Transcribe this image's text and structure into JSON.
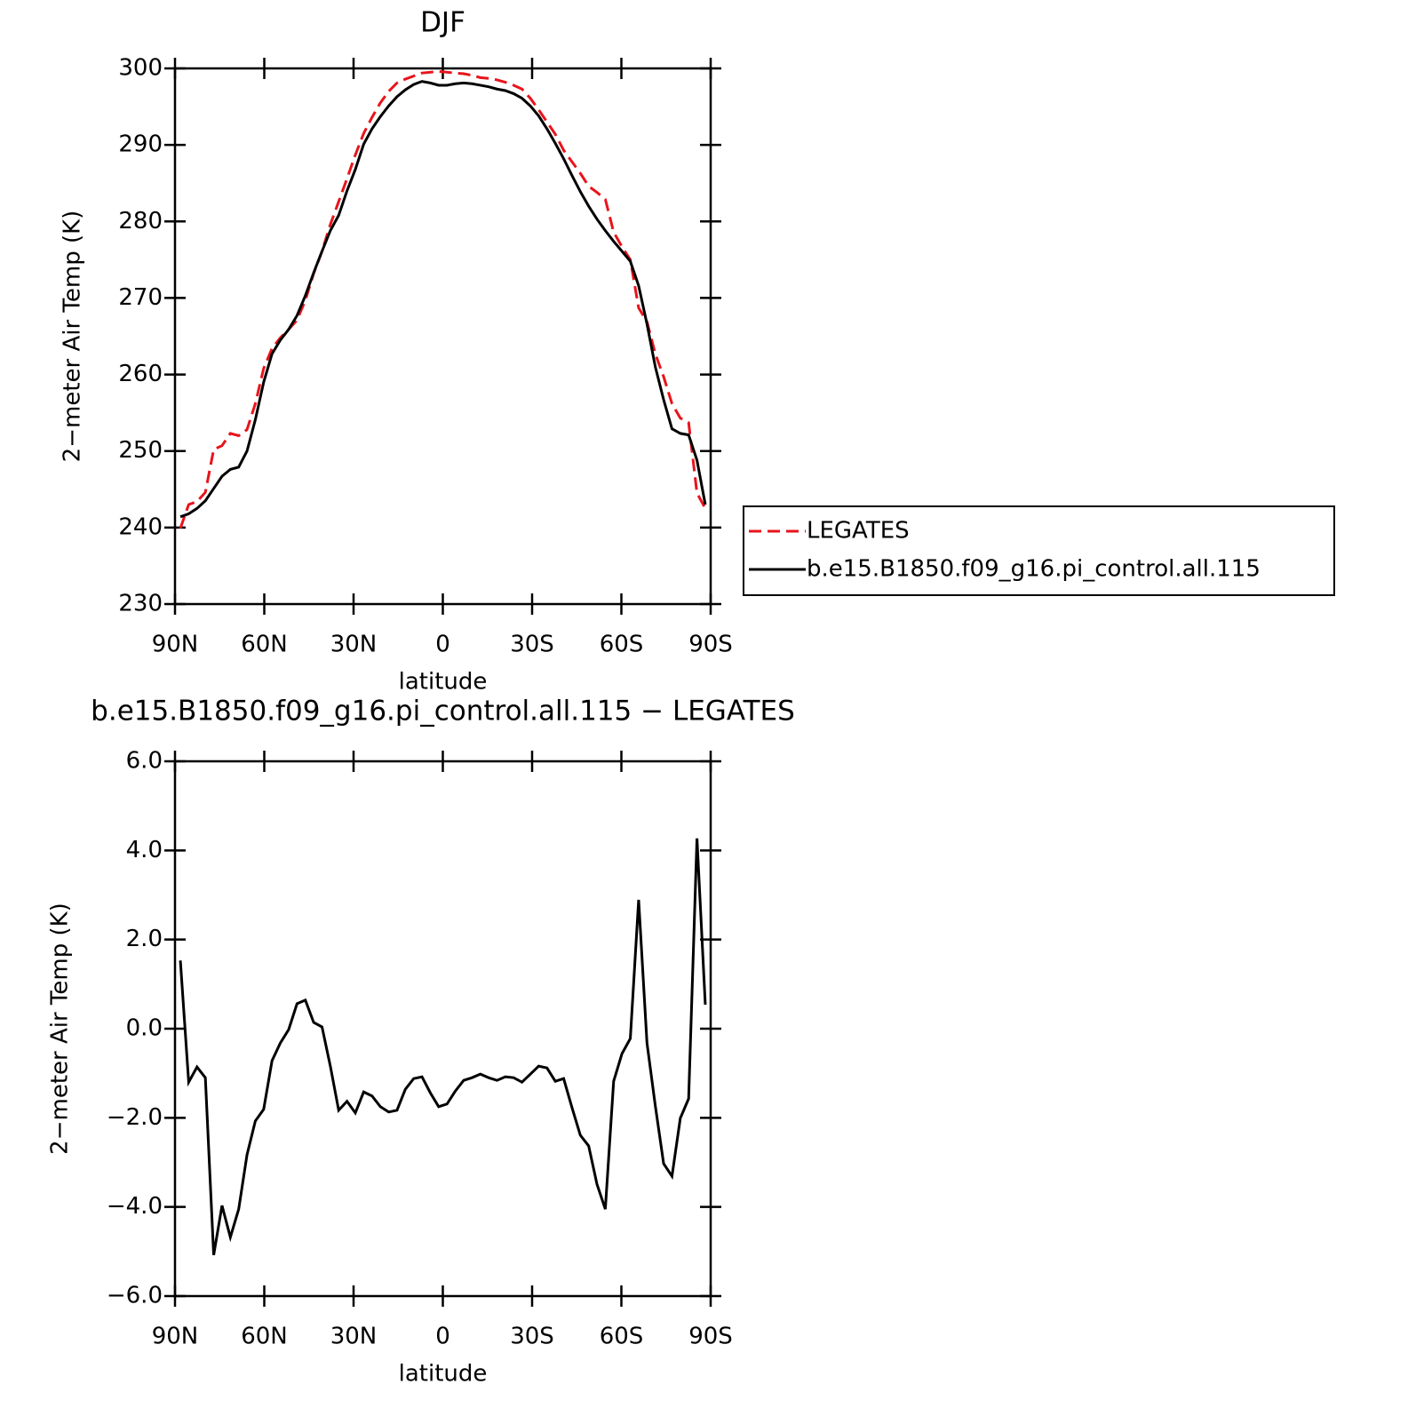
{
  "chart_data": [
    {
      "type": "line",
      "title": "DJF",
      "xlabel": "latitude",
      "ylabel": "2−meter Air Temp (K)",
      "xlim": [
        90,
        -90
      ],
      "ylim": [
        230,
        300
      ],
      "xticks": [
        {
          "value": 90,
          "label": "90N"
        },
        {
          "value": 60,
          "label": "60N"
        },
        {
          "value": 30,
          "label": "30N"
        },
        0,
        {
          "value": -30,
          "label": "30S"
        },
        {
          "value": -60,
          "label": "60S"
        },
        {
          "value": -90,
          "label": "90S"
        }
      ],
      "yticks": [
        230,
        240,
        250,
        260,
        270,
        280,
        290,
        300
      ],
      "legend": "right",
      "x": [
        88.2,
        85.4,
        82.6,
        79.8,
        77,
        74.2,
        71.4,
        68.6,
        65.8,
        63,
        60.2,
        57.4,
        54.6,
        51.8,
        49,
        46.2,
        43.4,
        40.6,
        37.8,
        35,
        32.2,
        29.4,
        26.6,
        23.8,
        21,
        18.2,
        15.4,
        12.6,
        9.8,
        7,
        4.2,
        1.4,
        -1.4,
        -4.2,
        -7,
        -9.8,
        -12.6,
        -15.4,
        -18.2,
        -21,
        -23.8,
        -26.6,
        -29.4,
        -32.2,
        -35,
        -37.8,
        -40.6,
        -43.4,
        -46.2,
        -49,
        -51.8,
        -54.6,
        -57.4,
        -60.2,
        -63,
        -65.8,
        -68.6,
        -71.4,
        -74.2,
        -77,
        -79.8,
        -82.6,
        -85.4,
        -88.2
      ],
      "series": [
        {
          "name": "LEGATES",
          "color": "#e8141b",
          "linestyle": "dashed",
          "values": [
            239.9,
            243.0,
            243.4,
            244.6,
            250.2,
            250.7,
            252.3,
            252.0,
            252.8,
            256.2,
            260.8,
            263.4,
            264.8,
            265.9,
            267.1,
            269.7,
            273.2,
            276.1,
            279.6,
            282.6,
            285.6,
            288.7,
            291.5,
            293.6,
            295.5,
            297.0,
            298.1,
            298.6,
            299.0,
            299.4,
            299.5,
            299.6,
            299.5,
            299.4,
            299.3,
            299.1,
            298.8,
            298.7,
            298.5,
            298.2,
            297.8,
            297.3,
            296.1,
            294.6,
            293.0,
            291.4,
            289.3,
            287.8,
            286.3,
            284.6,
            283.8,
            282.9,
            278.6,
            276.7,
            275.0,
            268.7,
            266.9,
            262.7,
            259.7,
            256.2,
            254.3,
            253.7,
            244.5,
            242.5
          ]
        },
        {
          "name": "b.e15.B1850.f09_g16.pi_control.all.115",
          "color": "#000000",
          "linestyle": "solid",
          "values": [
            241.4,
            241.8,
            242.5,
            243.5,
            245.1,
            246.7,
            247.6,
            247.9,
            250.0,
            254.1,
            259.0,
            262.7,
            264.5,
            265.9,
            267.7,
            270.3,
            273.3,
            276.1,
            278.8,
            280.8,
            284.0,
            286.8,
            290.1,
            292.1,
            293.7,
            295.1,
            296.3,
            297.2,
            297.9,
            298.3,
            298.1,
            297.8,
            297.8,
            298.0,
            298.1,
            298.0,
            297.8,
            297.6,
            297.3,
            297.1,
            296.7,
            296.1,
            295.1,
            293.8,
            292.1,
            290.2,
            288.2,
            286.0,
            283.9,
            282.0,
            280.3,
            278.8,
            277.4,
            276.1,
            274.8,
            271.6,
            266.6,
            261.0,
            256.7,
            252.9,
            252.3,
            252.1,
            248.8,
            243.0
          ]
        }
      ]
    },
    {
      "type": "line",
      "title": "b.e15.B1850.f09_g16.pi_control.all.115 − LEGATES",
      "xlabel": "latitude",
      "ylabel": "2−meter Air Temp (K)",
      "xlim": [
        90,
        -90
      ],
      "ylim": [
        -6,
        6
      ],
      "xticks": [
        {
          "value": 90,
          "label": "90N"
        },
        {
          "value": 60,
          "label": "60N"
        },
        {
          "value": 30,
          "label": "30N"
        },
        0,
        {
          "value": -30,
          "label": "30S"
        },
        {
          "value": -60,
          "label": "60S"
        },
        {
          "value": -90,
          "label": "90S"
        }
      ],
      "yticks": [
        {
          "value": -6,
          "label": "−6.0"
        },
        {
          "value": -4,
          "label": "−4.0"
        },
        {
          "value": -2,
          "label": "−2.0"
        },
        {
          "value": 0,
          "label": "0.0"
        },
        {
          "value": 2,
          "label": "2.0"
        },
        {
          "value": 4,
          "label": "4.0"
        },
        {
          "value": 6,
          "label": "6.0"
        }
      ],
      "color": "#000000",
      "x": [
        88.2,
        85.4,
        82.6,
        79.8,
        77,
        74.2,
        71.4,
        68.6,
        65.8,
        63,
        60.2,
        57.4,
        54.6,
        51.8,
        49,
        46.2,
        43.4,
        40.6,
        37.8,
        35,
        32.2,
        29.4,
        26.6,
        23.8,
        21,
        18.2,
        15.4,
        12.6,
        9.8,
        7,
        4.2,
        1.4,
        -1.4,
        -4.2,
        -7,
        -9.8,
        -12.6,
        -15.4,
        -18.2,
        -21,
        -23.8,
        -26.6,
        -29.4,
        -32.2,
        -35,
        -37.8,
        -40.6,
        -43.4,
        -46.2,
        -49,
        -51.8,
        -54.6,
        -57.4,
        -60.2,
        -63,
        -65.8,
        -68.6,
        -71.4,
        -74.2,
        -77,
        -79.8,
        -82.6,
        -85.4,
        -88.2
      ],
      "values": [
        1.53,
        -1.2,
        -0.86,
        -1.1,
        -5.08,
        -3.97,
        -4.68,
        -4.05,
        -2.83,
        -2.07,
        -1.81,
        -0.72,
        -0.32,
        -0.02,
        0.56,
        0.64,
        0.14,
        0.04,
        -0.84,
        -1.83,
        -1.63,
        -1.89,
        -1.42,
        -1.51,
        -1.75,
        -1.87,
        -1.83,
        -1.36,
        -1.12,
        -1.08,
        -1.44,
        -1.75,
        -1.69,
        -1.4,
        -1.16,
        -1.1,
        -1.02,
        -1.1,
        -1.16,
        -1.08,
        -1.1,
        -1.2,
        -1.02,
        -0.84,
        -0.88,
        -1.18,
        -1.12,
        -1.77,
        -2.39,
        -2.63,
        -3.49,
        -4.05,
        -1.18,
        -0.56,
        -0.22,
        2.89,
        -0.32,
        -1.73,
        -3.03,
        -3.31,
        -2.01,
        -1.57,
        4.27,
        0.54
      ]
    }
  ]
}
